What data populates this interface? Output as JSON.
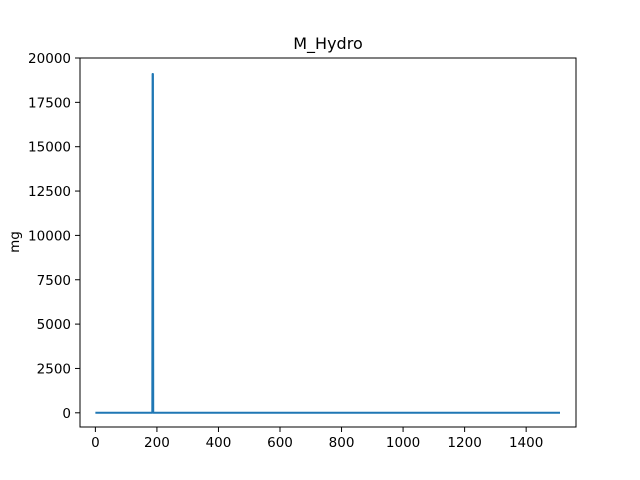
{
  "chart_data": {
    "type": "line",
    "title": "M_Hydro",
    "xlabel": "",
    "ylabel": "mg",
    "xlim": [
      -50,
      1562
    ],
    "ylim": [
      -800,
      20000
    ],
    "xticks": [
      0,
      200,
      400,
      600,
      800,
      1000,
      1200,
      1400
    ],
    "yticks": [
      0,
      2500,
      5000,
      7500,
      10000,
      12500,
      15000,
      17500,
      20000
    ],
    "grid": false,
    "legend": "none",
    "series": [
      {
        "color": "#1f77b4",
        "x": [
          0,
          185,
          186,
          187,
          188,
          1510
        ],
        "y": [
          0,
          0,
          19100,
          19100,
          0,
          0
        ]
      }
    ]
  }
}
